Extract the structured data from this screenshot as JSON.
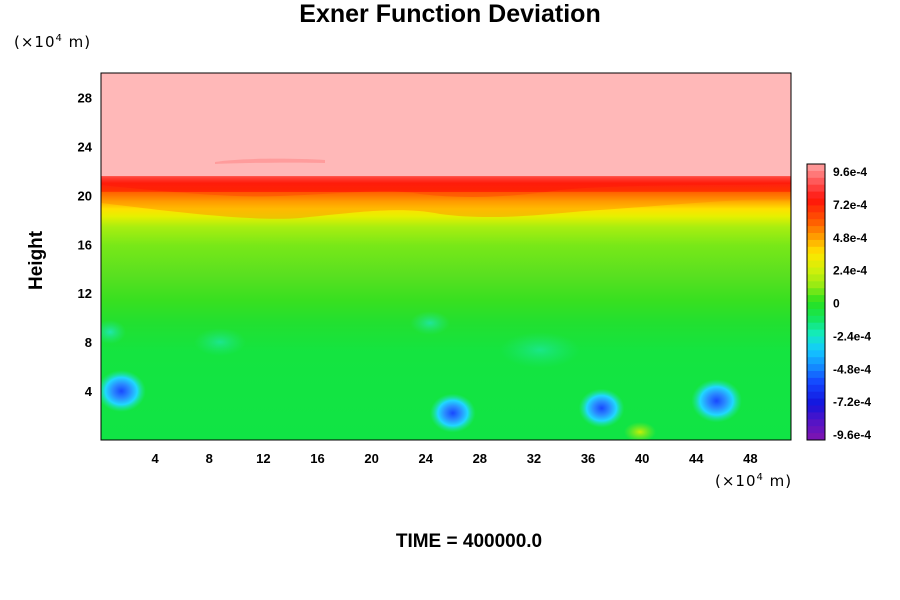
{
  "chart_data": {
    "type": "heatmap",
    "title": "Exner Function Deviation",
    "ylabel": "Height",
    "xlabel": "",
    "x_unit": {
      "prefix": "(×10",
      "exp": "4",
      "suffix": " m)"
    },
    "y_unit": {
      "prefix": "(×10",
      "exp": "4",
      "suffix": " m)"
    },
    "xlim": [
      0,
      51
    ],
    "ylim": [
      0,
      30
    ],
    "x_ticks": [
      "4",
      "8",
      "12",
      "16",
      "20",
      "24",
      "28",
      "32",
      "36",
      "40",
      "44",
      "48"
    ],
    "y_ticks": [
      "4",
      "8",
      "12",
      "16",
      "20",
      "24",
      "28"
    ],
    "colorbar": {
      "range": [
        -0.00096,
        0.00096
      ],
      "labels": [
        "9.6e-4",
        "7.2e-4",
        "4.8e-4",
        "2.4e-4",
        "0",
        "-2.4e-4",
        "-4.8e-4",
        "-7.2e-4",
        "-9.6e-4"
      ]
    },
    "field_description": {
      "upper_layer": {
        "from_height": 21.5,
        "to_height": 30,
        "value": 0.00096
      },
      "peak_band": {
        "center_height": 20,
        "value": 0.0008
      },
      "low_anomalies": [
        {
          "x": 1.5,
          "y": 4,
          "value": -0.00075
        },
        {
          "x": 26,
          "y": 2.2,
          "value": -0.00065
        },
        {
          "x": 37,
          "y": 2.6,
          "value": -0.00065
        },
        {
          "x": 45.5,
          "y": 3.2,
          "value": -0.0008
        }
      ]
    }
  },
  "footer": {
    "time_label": "TIME = 400000.0"
  }
}
